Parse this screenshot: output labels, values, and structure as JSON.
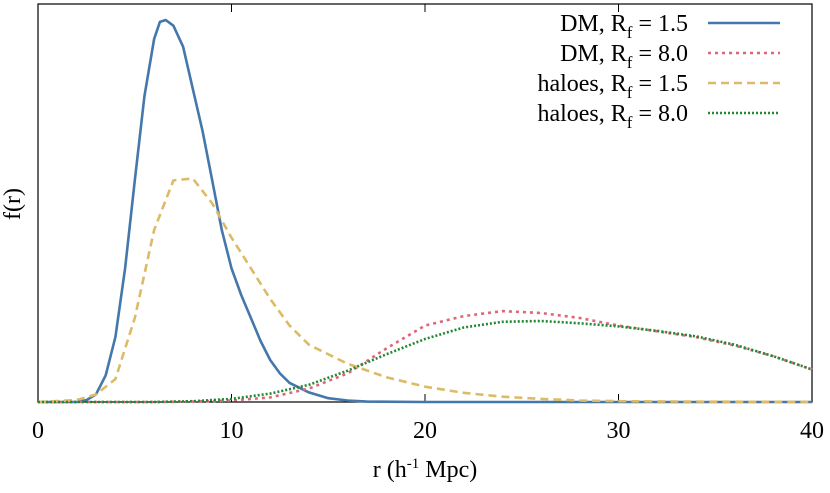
{
  "chart_data": {
    "type": "line",
    "title": "",
    "xlabel": {
      "main": "r (h",
      "sup": "-1",
      "rest": " Mpc)"
    },
    "ylabel": "f(r)",
    "xlim": [
      0,
      40
    ],
    "ylim": [
      0,
      1
    ],
    "xticks": [
      0,
      10,
      20,
      30,
      40
    ],
    "yticks": [],
    "grid": false,
    "legend_position": "top-right",
    "series": [
      {
        "name": "DM, R",
        "sub": "f",
        "value_label": " = 1.5",
        "color": "#4477aa",
        "dash": "solid",
        "x": [
          0,
          2,
          2.5,
          3,
          3.5,
          4,
          4.5,
          5,
          5.5,
          6,
          6.3,
          6.6,
          7,
          7.5,
          8,
          8.5,
          9,
          9.5,
          10,
          10.5,
          11,
          11.5,
          12,
          12.5,
          13,
          14,
          15,
          16,
          17,
          20,
          40
        ],
        "y": [
          0,
          0,
          0.005,
          0.02,
          0.07,
          0.17,
          0.35,
          0.58,
          0.8,
          0.95,
          0.995,
          1.0,
          0.985,
          0.93,
          0.82,
          0.71,
          0.58,
          0.45,
          0.35,
          0.28,
          0.22,
          0.16,
          0.11,
          0.075,
          0.05,
          0.025,
          0.01,
          0.004,
          0.001,
          0,
          0
        ]
      },
      {
        "name": "DM, R",
        "sub": "f",
        "value_label": " = 8.0",
        "color": "#dd6677",
        "dash": "dotted",
        "x": [
          0,
          6,
          8,
          10,
          12,
          14,
          16,
          18,
          20,
          22,
          24,
          26,
          28,
          30,
          32,
          34,
          36,
          38,
          40
        ],
        "y": [
          0,
          0,
          0.001,
          0.004,
          0.012,
          0.035,
          0.075,
          0.14,
          0.2,
          0.225,
          0.238,
          0.233,
          0.22,
          0.2,
          0.185,
          0.17,
          0.148,
          0.12,
          0.085
        ]
      },
      {
        "name": "haloes, R",
        "sub": "f",
        "value_label": " = 1.5",
        "color": "#ddbb66",
        "dash": "dashed",
        "x": [
          0,
          2,
          3,
          4,
          5,
          6,
          7,
          8,
          9,
          10,
          11,
          12,
          13,
          14,
          16,
          18,
          20,
          22,
          24,
          26,
          28,
          30,
          34,
          40
        ],
        "y": [
          0,
          0.005,
          0.02,
          0.06,
          0.22,
          0.45,
          0.58,
          0.585,
          0.52,
          0.43,
          0.35,
          0.27,
          0.2,
          0.15,
          0.1,
          0.065,
          0.04,
          0.024,
          0.014,
          0.008,
          0.004,
          0.002,
          0.001,
          0
        ]
      },
      {
        "name": "haloes, R",
        "sub": "f",
        "value_label": " = 8.0",
        "color": "#228833",
        "dash": "densedot",
        "x": [
          0,
          6,
          8,
          10,
          12,
          14,
          16,
          18,
          20,
          22,
          24,
          26,
          28,
          30,
          32,
          34,
          36,
          38,
          40
        ],
        "y": [
          0,
          0,
          0.002,
          0.008,
          0.022,
          0.045,
          0.082,
          0.125,
          0.165,
          0.195,
          0.21,
          0.212,
          0.206,
          0.198,
          0.186,
          0.172,
          0.15,
          0.12,
          0.085
        ]
      }
    ]
  }
}
